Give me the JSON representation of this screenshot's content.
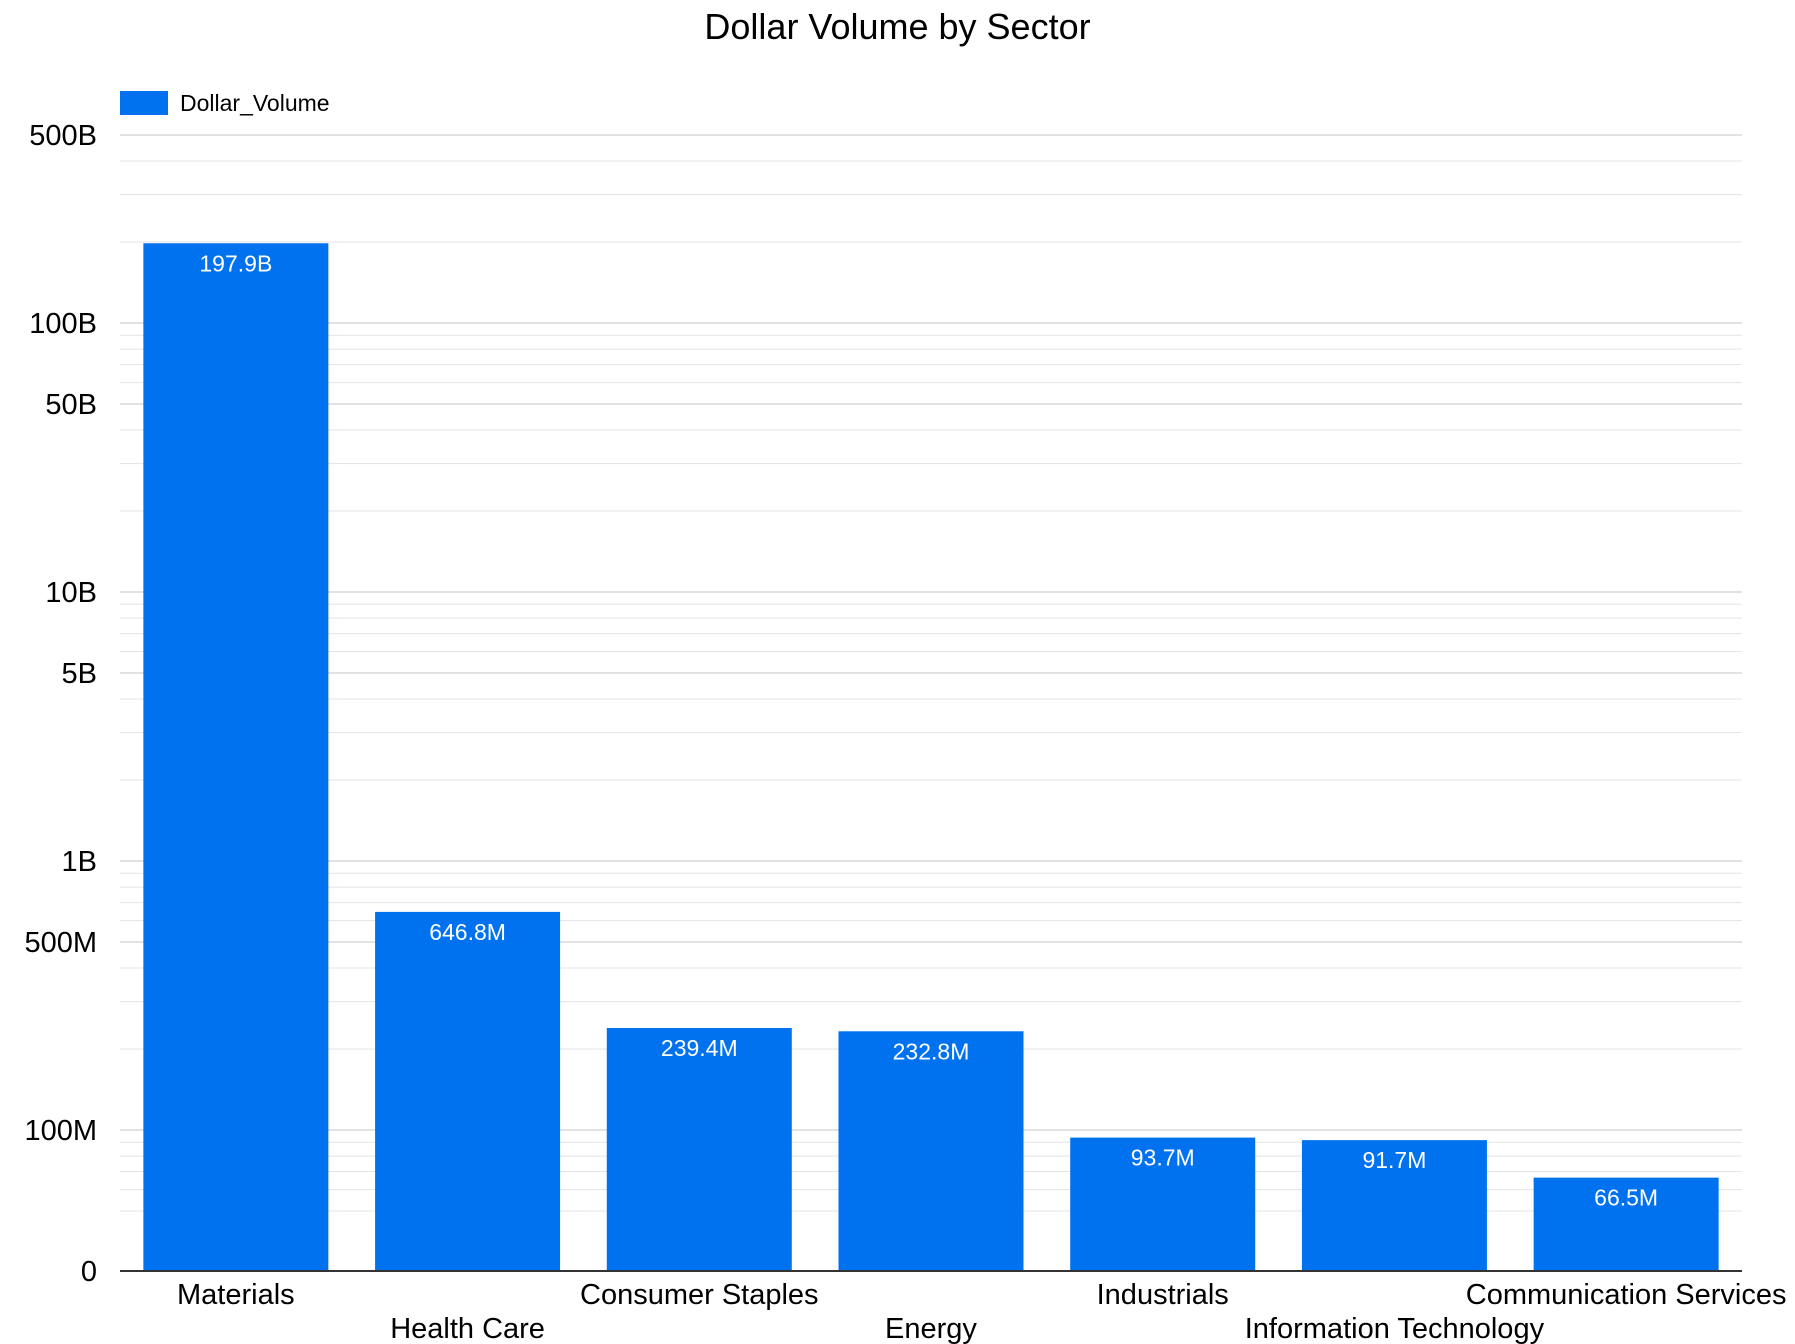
{
  "chart_data": {
    "type": "bar",
    "title": "Dollar Volume by Sector",
    "xlabel": "",
    "ylabel": "",
    "scale": "log",
    "grid": true,
    "legend_position": "top-left",
    "categories": [
      "Materials",
      "Health Care",
      "Consumer Staples",
      "Energy",
      "Industrials",
      "Information Technology",
      "Communication Services"
    ],
    "series": [
      {
        "name": "Dollar_Volume",
        "color": "#0072f0",
        "values": [
          197900000000,
          646800000,
          239400000,
          232800000,
          93700000,
          91700000,
          66500000
        ],
        "labels": [
          "197.9B",
          "646.8M",
          "239.4M",
          "232.8M",
          "93.7M",
          "91.7M",
          "66.5M"
        ]
      }
    ],
    "yticks": [
      {
        "value": 500000000000,
        "label": "500B"
      },
      {
        "value": 100000000000,
        "label": "100B"
      },
      {
        "value": 50000000000,
        "label": "50B"
      },
      {
        "value": 10000000000,
        "label": "10B"
      },
      {
        "value": 5000000000,
        "label": "5B"
      },
      {
        "value": 1000000000,
        "label": "1B"
      },
      {
        "value": 500000000,
        "label": "500M"
      },
      {
        "value": 100000000,
        "label": "100M"
      },
      {
        "value": 0,
        "label": "0"
      }
    ]
  }
}
